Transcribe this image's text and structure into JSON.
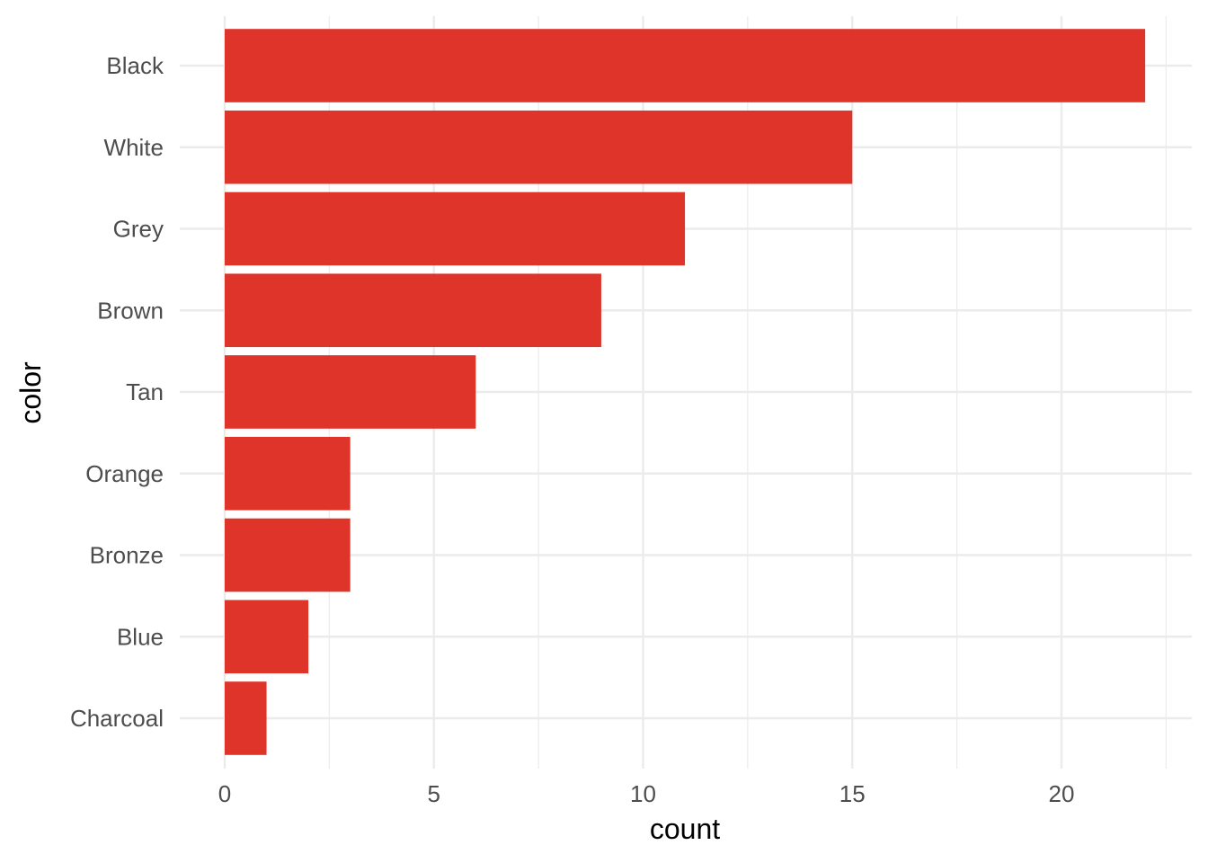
{
  "chart_data": {
    "type": "bar",
    "orientation": "horizontal",
    "categories": [
      "Black",
      "White",
      "Grey",
      "Brown",
      "Tan",
      "Orange",
      "Bronze",
      "Blue",
      "Charcoal"
    ],
    "values": [
      22,
      15,
      11,
      9,
      6,
      3,
      3,
      2,
      1
    ],
    "xlabel": "count",
    "ylabel": "color",
    "xlim": [
      0,
      23
    ],
    "x_ticks": [
      0,
      5,
      10,
      15,
      20
    ],
    "x_tick_labels": [
      "0",
      "5",
      "10",
      "15",
      "20"
    ],
    "grid": true,
    "bar_color": "#DE342A"
  }
}
